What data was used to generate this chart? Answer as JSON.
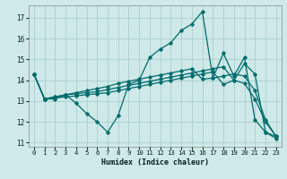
{
  "xlabel": "Humidex (Indice chaleur)",
  "xlim": [
    -0.5,
    23.5
  ],
  "ylim": [
    10.8,
    17.6
  ],
  "yticks": [
    11,
    12,
    13,
    14,
    15,
    16,
    17
  ],
  "xticks": [
    0,
    1,
    2,
    3,
    4,
    5,
    6,
    7,
    8,
    9,
    10,
    11,
    12,
    13,
    14,
    15,
    16,
    17,
    18,
    19,
    20,
    21,
    22,
    23
  ],
  "bg_color": "#cee9e8",
  "grid_color": "#aacfce",
  "line_color": "#006b6b",
  "line1": [
    14.3,
    13.1,
    13.1,
    13.3,
    12.9,
    12.4,
    12.0,
    11.5,
    12.3,
    13.8,
    14.0,
    15.1,
    15.5,
    15.8,
    16.4,
    16.7,
    17.3,
    14.1,
    15.3,
    14.2,
    15.1,
    12.1,
    11.5,
    11.3
  ],
  "line2": [
    14.3,
    13.1,
    13.2,
    13.3,
    13.4,
    13.5,
    13.6,
    13.7,
    13.85,
    13.95,
    14.05,
    14.15,
    14.25,
    14.35,
    14.45,
    14.55,
    14.05,
    14.1,
    14.2,
    14.3,
    14.2,
    13.5,
    12.1,
    11.3
  ],
  "line3": [
    14.3,
    13.1,
    13.2,
    13.3,
    13.35,
    13.4,
    13.45,
    13.55,
    13.65,
    13.75,
    13.85,
    13.95,
    14.05,
    14.15,
    14.25,
    14.35,
    14.45,
    14.55,
    14.65,
    14.0,
    13.85,
    13.1,
    12.0,
    11.3
  ],
  "line4": [
    14.3,
    13.1,
    13.15,
    13.2,
    13.25,
    13.3,
    13.35,
    13.4,
    13.5,
    13.6,
    13.7,
    13.8,
    13.9,
    14.0,
    14.1,
    14.2,
    14.3,
    14.4,
    13.8,
    14.0,
    14.8,
    14.3,
    11.5,
    11.2
  ]
}
